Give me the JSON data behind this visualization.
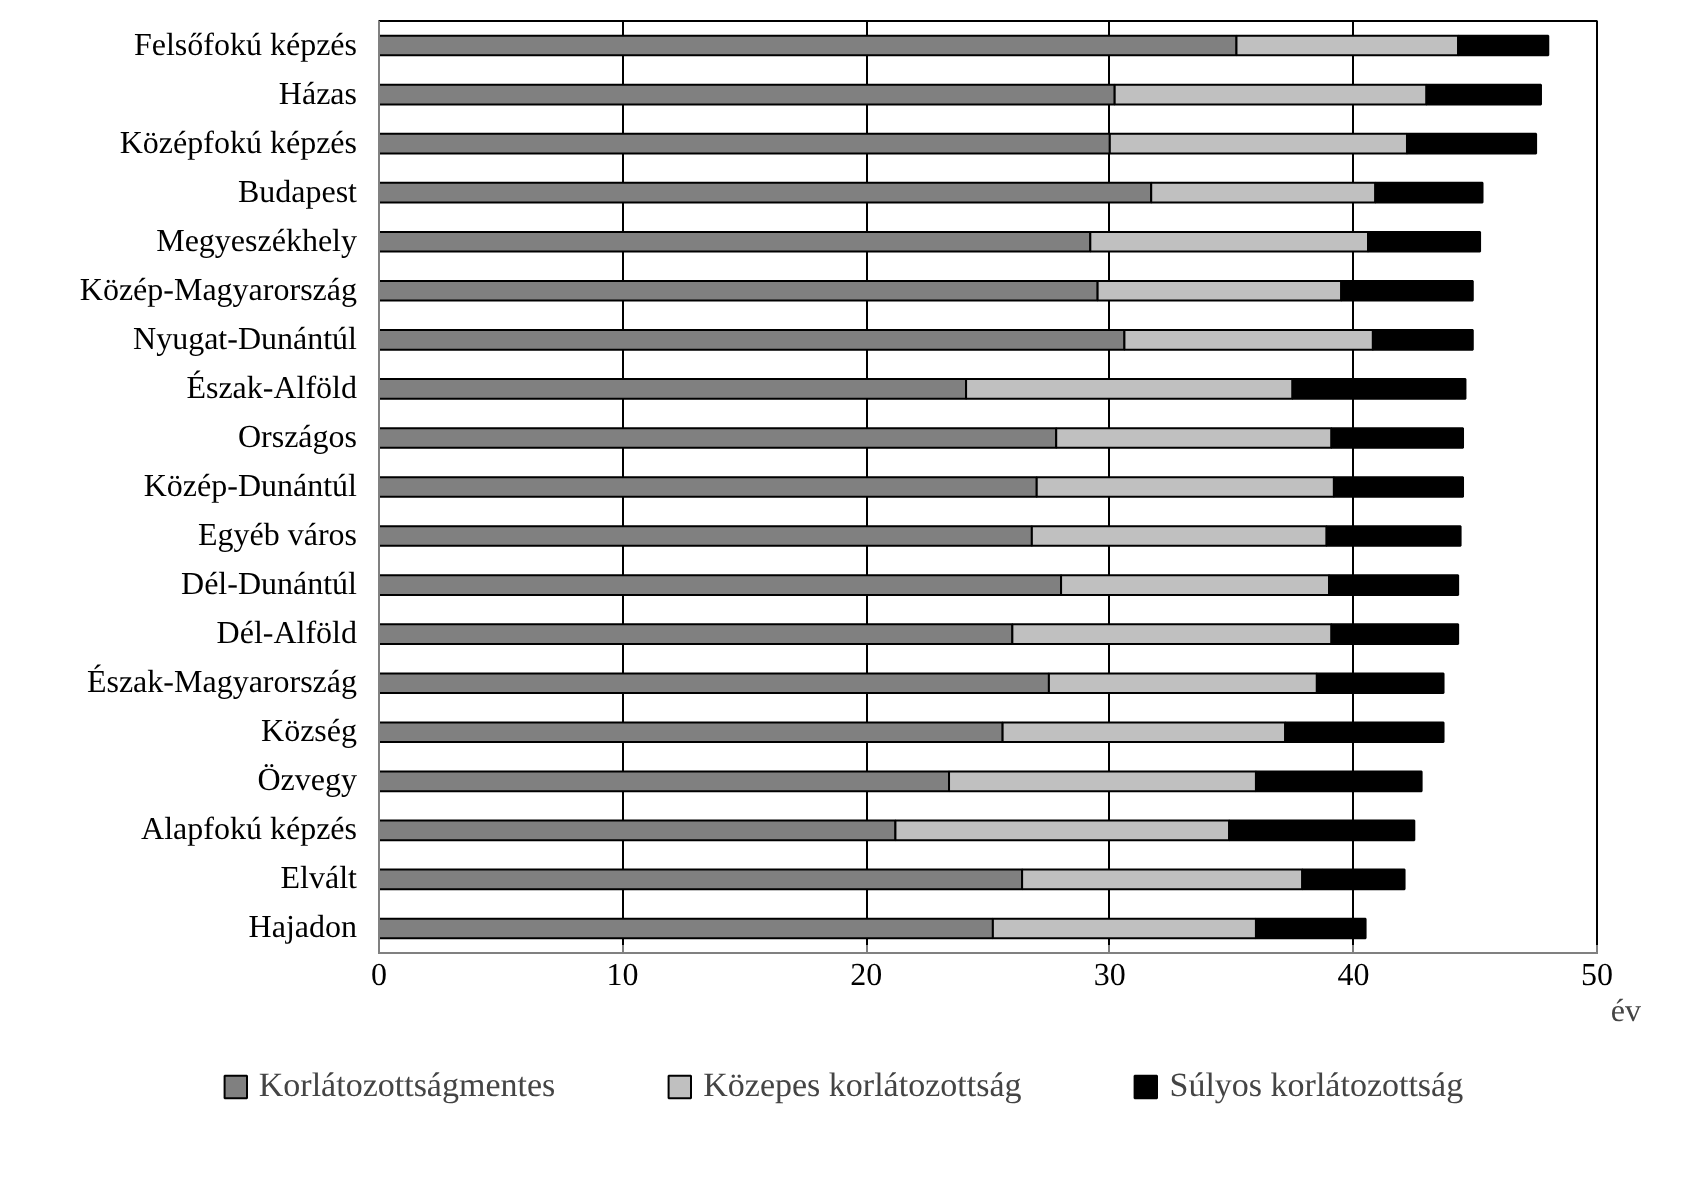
{
  "chart_data": {
    "type": "bar",
    "orientation": "horizontal",
    "stacked": true,
    "xlabel": "év",
    "categories": [
      "Felsőfokú képzés",
      "Házas",
      "Középfokú képzés",
      "Budapest",
      "Megyeszékhely",
      "Közép-Magyarország",
      "Nyugat-Dunántúl",
      "Észak-Alföld",
      "Országos",
      "Közép-Dunántúl",
      "Egyéb város",
      "Dél-Dunántúl",
      "Dél-Alföld",
      "Észak-Magyarország",
      "Község",
      "Özvegy",
      "Alapfokú képzés",
      "Elvált",
      "Hajadon"
    ],
    "series": [
      {
        "name": "Korlátozottságmentes",
        "color": "#808080",
        "values": [
          35.2,
          30.2,
          30.0,
          31.7,
          29.2,
          29.5,
          30.6,
          24.1,
          27.8,
          27.0,
          26.8,
          28.0,
          26.0,
          27.5,
          25.6,
          23.4,
          21.2,
          26.4,
          25.2
        ]
      },
      {
        "name": "Közepes korlátozottság",
        "color": "#c0c0c0",
        "values": [
          9.1,
          12.8,
          12.2,
          9.2,
          11.4,
          10.0,
          10.2,
          13.4,
          11.3,
          12.2,
          12.1,
          11.0,
          13.1,
          11.0,
          11.6,
          12.6,
          13.7,
          11.5,
          10.8
        ]
      },
      {
        "name": "Súlyos korlátozottság",
        "color": "#000000",
        "values": [
          3.7,
          4.7,
          5.3,
          4.4,
          4.6,
          5.4,
          4.1,
          7.1,
          5.4,
          5.3,
          5.5,
          5.3,
          5.2,
          5.2,
          6.5,
          6.8,
          7.6,
          4.2,
          4.5
        ]
      }
    ],
    "xlim": [
      0,
      50
    ],
    "xticks": [
      0,
      10,
      20,
      30,
      40,
      50
    ],
    "grid": "x",
    "legend": "bottom"
  }
}
